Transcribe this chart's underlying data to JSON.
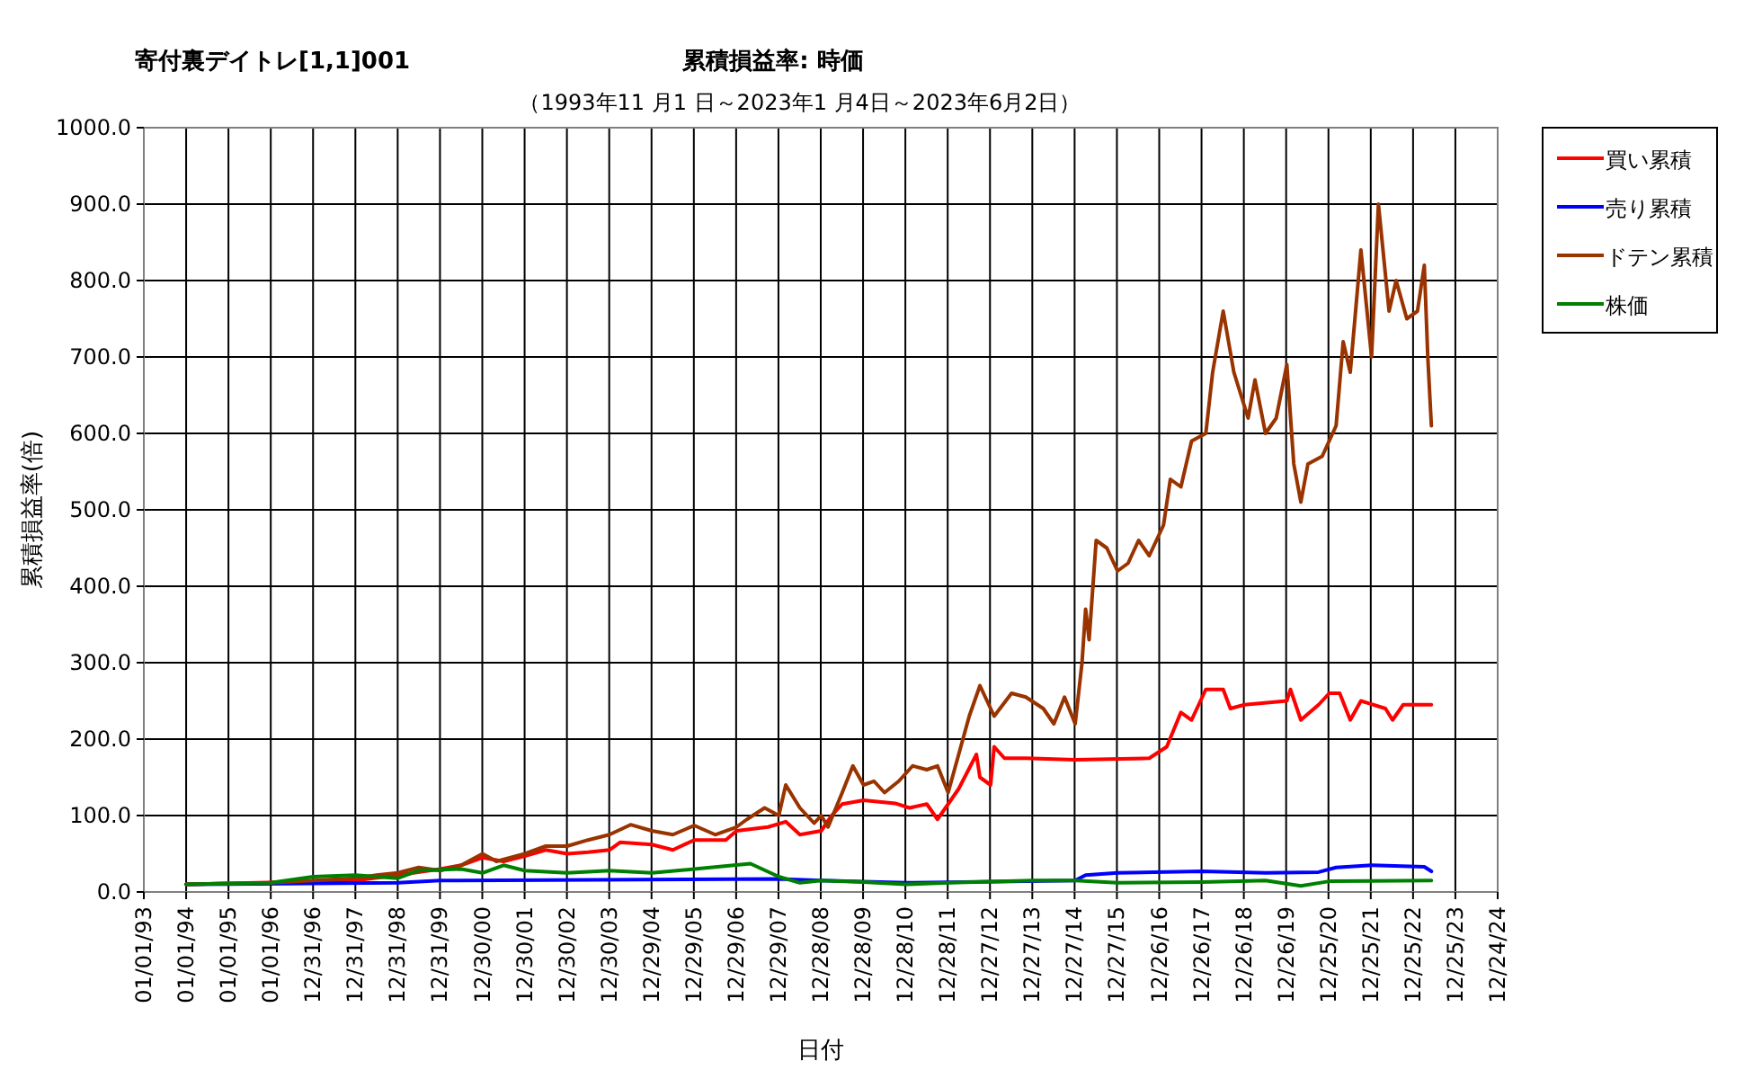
{
  "chart_data": {
    "type": "line",
    "title": "累積損益率:  時価",
    "subtitle": "（1993年11 月1 日～2023年1 月4日～2023年6月2日）",
    "annotations": [
      "寄付裏デイトレ[1,1]001"
    ],
    "xlabel": "日付",
    "ylabel": "累積損益率(倍)",
    "xlim": [
      "1993-01-01",
      "2024-12-24"
    ],
    "xticks": [
      {
        "value": "1993-01-01",
        "label": "01/01/93"
      },
      {
        "value": "1994-01-01",
        "label": "01/01/94"
      },
      {
        "value": "1995-01-01",
        "label": "01/01/95"
      },
      {
        "value": "1996-01-01",
        "label": "01/01/96"
      },
      {
        "value": "1996-12-31",
        "label": "12/31/96"
      },
      {
        "value": "1997-12-31",
        "label": "12/31/97"
      },
      {
        "value": "1998-12-31",
        "label": "12/31/98"
      },
      {
        "value": "1999-12-31",
        "label": "12/31/99"
      },
      {
        "value": "2000-12-30",
        "label": "12/30/00"
      },
      {
        "value": "2001-12-30",
        "label": "12/30/01"
      },
      {
        "value": "2002-12-30",
        "label": "12/30/02"
      },
      {
        "value": "2003-12-30",
        "label": "12/30/03"
      },
      {
        "value": "2004-12-29",
        "label": "12/29/04"
      },
      {
        "value": "2005-12-29",
        "label": "12/29/05"
      },
      {
        "value": "2006-12-29",
        "label": "12/29/06"
      },
      {
        "value": "2007-12-29",
        "label": "12/29/07"
      },
      {
        "value": "2008-12-28",
        "label": "12/28/08"
      },
      {
        "value": "2009-12-28",
        "label": "12/28/09"
      },
      {
        "value": "2010-12-28",
        "label": "12/28/10"
      },
      {
        "value": "2011-12-28",
        "label": "12/28/11"
      },
      {
        "value": "2012-12-27",
        "label": "12/27/12"
      },
      {
        "value": "2013-12-27",
        "label": "12/27/13"
      },
      {
        "value": "2014-12-27",
        "label": "12/27/14"
      },
      {
        "value": "2015-12-27",
        "label": "12/27/15"
      },
      {
        "value": "2016-12-26",
        "label": "12/26/16"
      },
      {
        "value": "2017-12-26",
        "label": "12/26/17"
      },
      {
        "value": "2018-12-26",
        "label": "12/26/18"
      },
      {
        "value": "2019-12-26",
        "label": "12/26/19"
      },
      {
        "value": "2020-12-25",
        "label": "12/25/20"
      },
      {
        "value": "2021-12-25",
        "label": "12/25/21"
      },
      {
        "value": "2022-12-25",
        "label": "12/25/22"
      },
      {
        "value": "2023-12-25",
        "label": "12/25/23"
      },
      {
        "value": "2024-12-24",
        "label": "12/24/24"
      }
    ],
    "ylim": [
      0,
      1000
    ],
    "yticks": [
      {
        "value": 0,
        "label": "0.0"
      },
      {
        "value": 100,
        "label": "100.0"
      },
      {
        "value": 200,
        "label": "200.0"
      },
      {
        "value": 300,
        "label": "300.0"
      },
      {
        "value": 400,
        "label": "400.0"
      },
      {
        "value": 500,
        "label": "500.0"
      },
      {
        "value": 600,
        "label": "600.0"
      },
      {
        "value": 700,
        "label": "700.0"
      },
      {
        "value": 800,
        "label": "800.0"
      },
      {
        "value": 900,
        "label": "900.0"
      },
      {
        "value": 1000,
        "label": "1000.0"
      }
    ],
    "grid": true,
    "legend": "right",
    "series": [
      {
        "name": "買い累積",
        "color": "#ff0000",
        "x": [
          "1994-01",
          "1998-01",
          "1999-01",
          "2000-01",
          "2000-07",
          "2001-01",
          "2001-07",
          "2002-01",
          "2002-07",
          "2003-01",
          "2003-07",
          "2004-01",
          "2004-04",
          "2005-01",
          "2005-07",
          "2006-01",
          "2006-10",
          "2007-01",
          "2007-10",
          "2008-03",
          "2008-07",
          "2009-01",
          "2009-04",
          "2009-07",
          "2010-01",
          "2010-10",
          "2011-02",
          "2011-07",
          "2011-10",
          "2012-01",
          "2012-04",
          "2012-09",
          "2012-10",
          "2013-01",
          "2013-02",
          "2013-05",
          "2013-11",
          "2015-01",
          "2016-10",
          "2017-03",
          "2017-07",
          "2017-10",
          "2018-02",
          "2018-07",
          "2018-09",
          "2019-01",
          "2020-01",
          "2020-02",
          "2020-05",
          "2020-10",
          "2021-01",
          "2021-04",
          "2021-07",
          "2021-10",
          "2022-05",
          "2022-07",
          "2022-10",
          "2023-06"
        ],
        "values": [
          10,
          15,
          22,
          30,
          35,
          45,
          40,
          47,
          55,
          50,
          52,
          55,
          65,
          62,
          55,
          68,
          68,
          80,
          85,
          92,
          75,
          80,
          100,
          115,
          120,
          116,
          110,
          115,
          95,
          115,
          135,
          180,
          150,
          140,
          190,
          175,
          175,
          173,
          175,
          190,
          235,
          225,
          265,
          265,
          240,
          245,
          250,
          265,
          225,
          245,
          260,
          260,
          225,
          250,
          240,
          225,
          245,
          245
        ]
      },
      {
        "name": "売り累積",
        "color": "#0000ff",
        "x": [
          "1994-01",
          "1999-01",
          "2000-01",
          "2008-01",
          "2009-01",
          "2011-01",
          "2015-01",
          "2015-04",
          "2016-01",
          "2018-01",
          "2019-07",
          "2020-10",
          "2021-03",
          "2022-01",
          "2023-04",
          "2023-06"
        ],
        "values": [
          10,
          12,
          15,
          17,
          15,
          12,
          15,
          22,
          25,
          27,
          25,
          26,
          32,
          35,
          33,
          27
        ]
      },
      {
        "name": "ドテン累積",
        "color": "#993300",
        "x": [
          "1994-01",
          "1996-01",
          "1997-01",
          "1998-01",
          "1998-07",
          "1999-01",
          "1999-07",
          "2000-01",
          "2000-07",
          "2001-01",
          "2001-05",
          "2002-01",
          "2002-07",
          "2003-01",
          "2003-07",
          "2004-01",
          "2004-07",
          "2005-01",
          "2005-07",
          "2006-01",
          "2006-07",
          "2007-01",
          "2007-04",
          "2007-09",
          "2008-01",
          "2008-03",
          "2008-07",
          "2008-11",
          "2009-01",
          "2009-03",
          "2009-07",
          "2009-10",
          "2010-01",
          "2010-04",
          "2010-07",
          "2010-11",
          "2011-03",
          "2011-07",
          "2011-10",
          "2012-01",
          "2012-04",
          "2012-07",
          "2012-10",
          "2013-02",
          "2013-07",
          "2013-11",
          "2014-04",
          "2014-07",
          "2014-10",
          "2015-01",
          "2015-03",
          "2015-04",
          "2015-05",
          "2015-07",
          "2015-10",
          "2016-01",
          "2016-04",
          "2016-07",
          "2016-10",
          "2017-02",
          "2017-04",
          "2017-07",
          "2017-10",
          "2018-02",
          "2018-04",
          "2018-07",
          "2018-10",
          "2019-02",
          "2019-04",
          "2019-07",
          "2019-10",
          "2020-01",
          "2020-03",
          "2020-05",
          "2020-07",
          "2020-11",
          "2021-03",
          "2021-05",
          "2021-07",
          "2021-10",
          "2022-01",
          "2022-03",
          "2022-06",
          "2022-08",
          "2022-11",
          "2023-02",
          "2023-04",
          "2023-05",
          "2023-06"
        ],
        "values": [
          10,
          12,
          15,
          18,
          22,
          25,
          32,
          28,
          35,
          50,
          40,
          50,
          60,
          60,
          68,
          75,
          88,
          80,
          75,
          87,
          75,
          85,
          95,
          110,
          100,
          140,
          110,
          90,
          100,
          85,
          130,
          165,
          140,
          145,
          130,
          145,
          165,
          160,
          165,
          130,
          180,
          230,
          270,
          230,
          260,
          255,
          240,
          220,
          255,
          220,
          300,
          370,
          330,
          460,
          450,
          420,
          430,
          460,
          440,
          480,
          540,
          530,
          590,
          600,
          680,
          760,
          680,
          620,
          670,
          600,
          620,
          690,
          560,
          510,
          560,
          570,
          610,
          720,
          680,
          840,
          700,
          900,
          760,
          800,
          750,
          760,
          820,
          700,
          610
        ]
      },
      {
        "name": "株価",
        "color": "#008000",
        "x": [
          "1994-01",
          "1996-01",
          "1997-01",
          "1998-01",
          "1999-01",
          "1999-07",
          "2000-07",
          "2001-01",
          "2001-07",
          "2002-01",
          "2003-01",
          "2004-01",
          "2005-01",
          "2006-01",
          "2007-05",
          "2008-01",
          "2008-07",
          "2009-01",
          "2010-01",
          "2011-01",
          "2012-01",
          "2014-01",
          "2015-01",
          "2016-01",
          "2018-01",
          "2019-07",
          "2020-05",
          "2021-01",
          "2023-06"
        ],
        "values": [
          10,
          12,
          20,
          22,
          18,
          28,
          30,
          25,
          35,
          28,
          25,
          28,
          25,
          30,
          37,
          20,
          12,
          15,
          13,
          10,
          12,
          15,
          15,
          12,
          13,
          15,
          8,
          14,
          15
        ]
      }
    ]
  }
}
